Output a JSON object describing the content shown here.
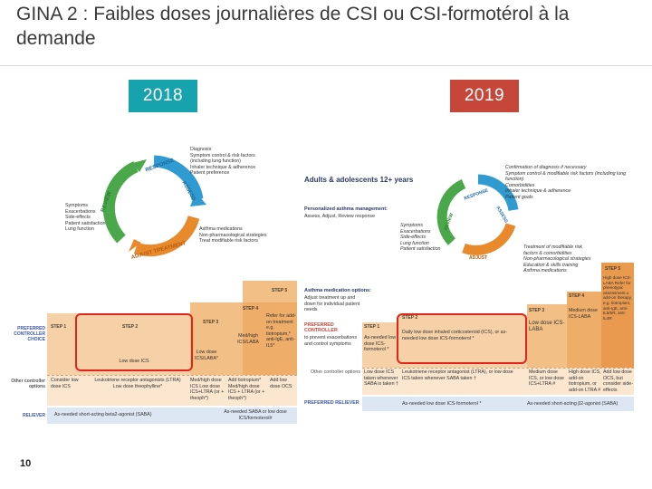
{
  "slide": {
    "title": "GINA 2 : Faibles doses journalières de CSI ou CSI-formotérol à la demande",
    "page_number": "10"
  },
  "badges": {
    "left": "2018",
    "right": "2019",
    "left_color": "#16a3ad",
    "right_color": "#c6463a"
  },
  "gina2018": {
    "cycle": {
      "top": "RESPONSE",
      "right": "ASSESS",
      "left": "REVIEW",
      "bottom": "ADJUST TREATMENT"
    },
    "assess_items": [
      "Diagnosis",
      "Symptom control & risk factors",
      "(including lung function)",
      "Inhaler technique & adherence",
      "Patient preference"
    ],
    "review_items": [
      "Symptoms",
      "Exacerbations",
      "Side-effects",
      "Patient satisfaction",
      "Lung function"
    ],
    "adjust_items": [
      "Asthma medications",
      "Non-pharmacological strategies",
      "Treat modifiable risk factors"
    ],
    "row_labels": {
      "preferred": "PREFERRED CONTROLLER CHOICE",
      "other": "Other controller options",
      "reliever": "RELIEVER"
    },
    "steps": [
      "STEP 1",
      "STEP 2",
      "STEP 3",
      "STEP 4",
      "STEP 5"
    ],
    "preferred": [
      "Low dose ICS",
      "Low dose ICS/LABA*",
      "Med/high ICS/LABA",
      "Refer for add-on treatment e.g. tiotropium,* anti-IgE, anti-IL5*"
    ],
    "other": [
      "Consider low dose ICS",
      "Leukotriene receptor antagonists (LTRA) Low dose theophylline*",
      "Med/high dose ICS Low dose ICS+LTRA (or + theoph*)",
      "Add tiotropium* Med/high dose ICS + LTRA (or + theoph*)",
      "Add low dose OCS"
    ],
    "reliever": "As-needed short-acting beta2-agonist (SABA)",
    "reliever_alt": "As-needed SABA or low dose ICS/formoterol#"
  },
  "gina2019": {
    "header": "Adults & adolescents 12+ years",
    "management": "Personalized asthma management:",
    "management_sub": "Assess, Adjust, Review response",
    "cycle": {
      "top": "RESPONSE",
      "right": "ASSESS",
      "left": "REVIEW",
      "bottom": "ADJUST"
    },
    "assess_items": [
      "Confirmation of diagnosis if necessary",
      "Symptom control & modifiable risk factors (including lung function)",
      "Comorbidities",
      "Inhaler technique & adherence",
      "Patient goals"
    ],
    "review_items": [
      "Symptoms",
      "Exacerbations",
      "Side-effects",
      "Lung function",
      "Patient satisfaction"
    ],
    "adjust_items": [
      "Treatment of modifiable risk factors & comorbidities",
      "Non-pharmacological strategies",
      "Education & skills training",
      "Asthma medications"
    ],
    "options_title": "Asthma medication options:",
    "options_sub": "Adjust treatment up and down for individual patient needs",
    "row_labels": {
      "preferred": "PREFERRED CONTROLLER",
      "preferred_sub": "to prevent exacerbations and control symptoms",
      "other": "Other controller options",
      "reliever": "PREFERRED RELIEVER"
    },
    "steps": [
      "STEP 1",
      "STEP 2",
      "STEP 3",
      "STEP 4",
      "STEP 5"
    ],
    "step1_pref": "As-needed low dose ICS-formoterol *",
    "step2_pref": "Daily low dose inhaled corticosteroid (ICS), or as-needed low dose ICS-formoterol *",
    "step3_pref": "Low dose ICS-LABA",
    "step4_pref": "Medium dose ICS-LABA",
    "step5_pref": "High dose ICS-LABA Refer for phenotypic assessment ± add-on therapy, e.g. tiotropium, anti-IgE, anti-IL5/5R, anti-IL4R",
    "step1_other": "Low dose ICS taken whenever SABA is taken †",
    "step2_other": "Leukotriene receptor antagonist (LTRA), or low dose ICS taken whenever SABA taken †",
    "step3_other": "Medium dose ICS, or low dose ICS+LTRA #",
    "step4_other": "High dose ICS, add-on tiotropium, or add-on LTRA #",
    "step5_other": "Add low dose OCS, but consider side-effects",
    "reliever": "As-needed low dose ICS-formoterol *",
    "reliever_alt": "As-needed short-acting β2-agonist (SABA)"
  }
}
